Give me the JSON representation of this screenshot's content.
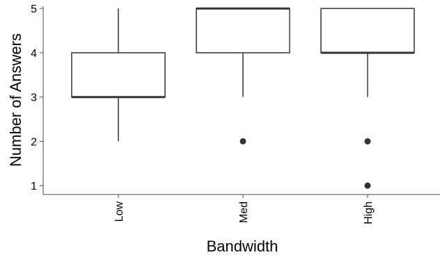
{
  "chart_data": {
    "type": "boxplot",
    "xlabel": "Bandwidth",
    "ylabel": "Number of Answers",
    "ylim": [
      0.8,
      5.05
    ],
    "yticks": [
      1,
      2,
      3,
      4,
      5
    ],
    "categories": [
      "Low",
      "Med",
      "High"
    ],
    "boxes": [
      {
        "category": "Low",
        "whisker_low": 2,
        "q1": 3,
        "median": 3,
        "q3": 4,
        "whisker_high": 5,
        "outliers": []
      },
      {
        "category": "Med",
        "whisker_low": 3,
        "q1": 4,
        "median": 5,
        "q3": 5,
        "whisker_high": 5,
        "outliers": [
          2
        ]
      },
      {
        "category": "High",
        "whisker_low": 3,
        "q1": 4,
        "median": 4,
        "q3": 5,
        "whisker_high": 5,
        "outliers": [
          2,
          1
        ]
      }
    ],
    "grid": false,
    "colors": {
      "box_fill": "#ffffff",
      "stroke": "#333333",
      "outlier": "#333333"
    }
  }
}
